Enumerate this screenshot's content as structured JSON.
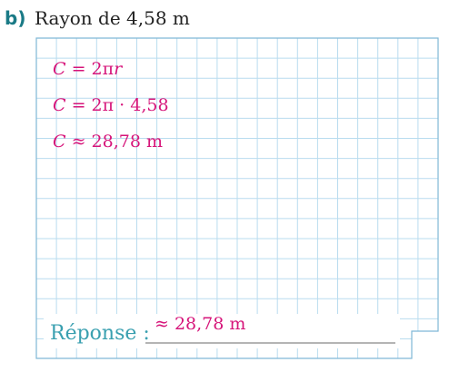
{
  "header": {
    "label": "b)",
    "title": "Rayon de 4,58 m"
  },
  "work": [
    [
      "C",
      " = 2π",
      "r"
    ],
    [
      "C",
      " = 2π · 4,58"
    ],
    [
      "C",
      " ≈ 28,78 m"
    ]
  ],
  "answer": {
    "label": "Réponse :",
    "value": "≈ 28,78 m"
  }
}
